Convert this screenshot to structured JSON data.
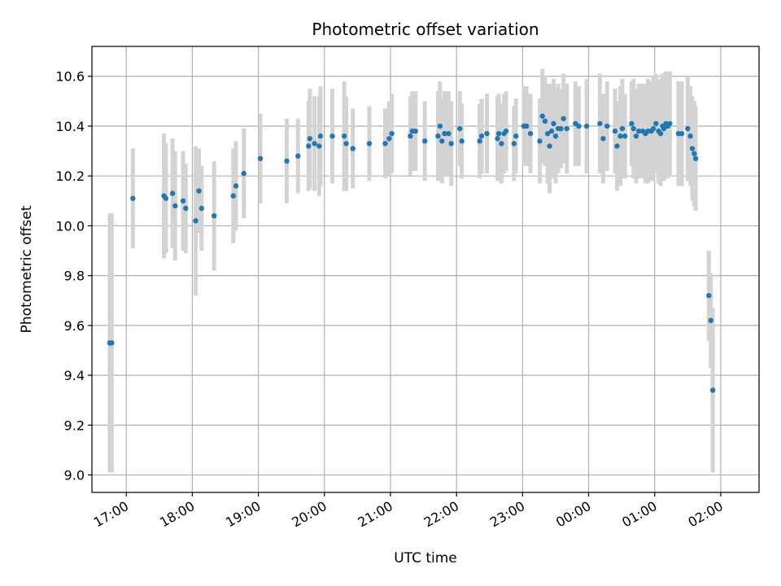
{
  "chart_data": {
    "type": "scatter",
    "title": "Photometric offset variation",
    "xlabel": "UTC time",
    "ylabel": "Photometric offset",
    "x_unit": "hours after 00:00 UTC of first night (values > 24 are after midnight)",
    "xlim": [
      16.48,
      26.58
    ],
    "ylim": [
      8.93,
      10.72
    ],
    "xticks": [
      {
        "value": 17,
        "label": "17:00"
      },
      {
        "value": 18,
        "label": "18:00"
      },
      {
        "value": 19,
        "label": "19:00"
      },
      {
        "value": 20,
        "label": "20:00"
      },
      {
        "value": 21,
        "label": "21:00"
      },
      {
        "value": 22,
        "label": "22:00"
      },
      {
        "value": 23,
        "label": "23:00"
      },
      {
        "value": 24,
        "label": "00:00"
      },
      {
        "value": 25,
        "label": "01:00"
      },
      {
        "value": 26,
        "label": "02:00"
      }
    ],
    "yticks": [
      {
        "value": 9.0,
        "label": "9.0"
      },
      {
        "value": 9.2,
        "label": "9.2"
      },
      {
        "value": 9.4,
        "label": "9.4"
      },
      {
        "value": 9.6,
        "label": "9.6"
      },
      {
        "value": 9.8,
        "label": "9.8"
      },
      {
        "value": 10.0,
        "label": "10.0"
      },
      {
        "value": 10.2,
        "label": "10.2"
      },
      {
        "value": 10.4,
        "label": "10.4"
      },
      {
        "value": 10.6,
        "label": "10.6"
      }
    ],
    "grid": true,
    "colors": {
      "point": "#1f77b4",
      "errorbar": "#d3d3d3",
      "grid": "#b0b0b0"
    },
    "series": [
      {
        "points": [
          [
            16.75,
            9.53,
            0.52
          ],
          [
            16.78,
            9.53,
            0.52
          ],
          [
            17.1,
            10.11,
            0.2
          ],
          [
            17.57,
            10.12,
            0.25
          ],
          [
            17.6,
            10.11,
            0.22
          ],
          [
            17.7,
            10.13,
            0.22
          ],
          [
            17.74,
            10.08,
            0.22
          ],
          [
            17.86,
            10.1,
            0.2
          ],
          [
            17.9,
            10.07,
            0.18
          ],
          [
            18.05,
            10.02,
            0.3
          ],
          [
            18.1,
            10.14,
            0.17
          ],
          [
            18.14,
            10.07,
            0.17
          ],
          [
            18.33,
            10.04,
            0.22
          ],
          [
            18.62,
            10.12,
            0.19
          ],
          [
            18.66,
            10.16,
            0.18
          ],
          [
            18.78,
            10.21,
            0.18
          ],
          [
            19.03,
            10.27,
            0.18
          ],
          [
            19.43,
            10.26,
            0.17
          ],
          [
            19.6,
            10.28,
            0.15
          ],
          [
            19.76,
            10.32,
            0.18
          ],
          [
            19.78,
            10.35,
            0.2
          ],
          [
            19.85,
            10.33,
            0.19
          ],
          [
            19.92,
            10.32,
            0.2
          ],
          [
            19.94,
            10.36,
            0.2
          ],
          [
            20.12,
            10.36,
            0.19
          ],
          [
            20.3,
            10.36,
            0.22
          ],
          [
            20.33,
            10.33,
            0.19
          ],
          [
            20.43,
            10.31,
            0.16
          ],
          [
            20.68,
            10.33,
            0.15
          ],
          [
            20.92,
            10.33,
            0.14
          ],
          [
            20.98,
            10.35,
            0.15
          ],
          [
            21.02,
            10.37,
            0.16
          ],
          [
            21.3,
            10.36,
            0.16
          ],
          [
            21.33,
            10.38,
            0.16
          ],
          [
            21.38,
            10.38,
            0.16
          ],
          [
            21.52,
            10.34,
            0.16
          ],
          [
            21.72,
            10.36,
            0.18
          ],
          [
            21.75,
            10.4,
            0.18
          ],
          [
            21.78,
            10.34,
            0.17
          ],
          [
            21.82,
            10.37,
            0.17
          ],
          [
            21.88,
            10.37,
            0.17
          ],
          [
            21.92,
            10.33,
            0.17
          ],
          [
            22.05,
            10.39,
            0.15
          ],
          [
            22.08,
            10.34,
            0.15
          ],
          [
            22.35,
            10.34,
            0.15
          ],
          [
            22.38,
            10.36,
            0.15
          ],
          [
            22.46,
            10.37,
            0.16
          ],
          [
            22.62,
            10.35,
            0.17
          ],
          [
            22.64,
            10.37,
            0.16
          ],
          [
            22.68,
            10.33,
            0.16
          ],
          [
            22.72,
            10.37,
            0.16
          ],
          [
            22.75,
            10.38,
            0.16
          ],
          [
            22.87,
            10.33,
            0.15
          ],
          [
            22.9,
            10.36,
            0.15
          ],
          [
            23.02,
            10.4,
            0.16
          ],
          [
            23.06,
            10.4,
            0.16
          ],
          [
            23.12,
            10.37,
            0.16
          ],
          [
            23.26,
            10.34,
            0.17
          ],
          [
            23.3,
            10.44,
            0.19
          ],
          [
            23.34,
            10.42,
            0.18
          ],
          [
            23.38,
            10.37,
            0.2
          ],
          [
            23.41,
            10.32,
            0.19
          ],
          [
            23.44,
            10.38,
            0.19
          ],
          [
            23.47,
            10.41,
            0.18
          ],
          [
            23.5,
            10.36,
            0.19
          ],
          [
            23.54,
            10.39,
            0.18
          ],
          [
            23.58,
            10.39,
            0.16
          ],
          [
            23.62,
            10.43,
            0.18
          ],
          [
            23.67,
            10.39,
            0.18
          ],
          [
            23.8,
            10.41,
            0.17
          ],
          [
            23.85,
            10.4,
            0.16
          ],
          [
            23.97,
            10.4,
            0.19
          ],
          [
            24.17,
            10.41,
            0.2
          ],
          [
            24.22,
            10.35,
            0.18
          ],
          [
            24.28,
            10.4,
            0.18
          ],
          [
            24.4,
            10.38,
            0.17
          ],
          [
            24.43,
            10.32,
            0.18
          ],
          [
            24.48,
            10.36,
            0.2
          ],
          [
            24.51,
            10.39,
            0.2
          ],
          [
            24.55,
            10.36,
            0.17
          ],
          [
            24.65,
            10.41,
            0.17
          ],
          [
            24.68,
            10.39,
            0.2
          ],
          [
            24.72,
            10.36,
            0.19
          ],
          [
            24.76,
            10.38,
            0.19
          ],
          [
            24.82,
            10.38,
            0.19
          ],
          [
            24.86,
            10.37,
            0.2
          ],
          [
            24.9,
            10.38,
            0.21
          ],
          [
            24.95,
            10.38,
            0.2
          ],
          [
            24.98,
            10.39,
            0.21
          ],
          [
            25.02,
            10.41,
            0.2
          ],
          [
            25.06,
            10.38,
            0.21
          ],
          [
            25.09,
            10.37,
            0.21
          ],
          [
            25.12,
            10.4,
            0.21
          ],
          [
            25.14,
            10.39,
            0.21
          ],
          [
            25.17,
            10.41,
            0.21
          ],
          [
            25.2,
            10.4,
            0.21
          ],
          [
            25.23,
            10.41,
            0.21
          ],
          [
            25.36,
            10.37,
            0.21
          ],
          [
            25.41,
            10.37,
            0.21
          ],
          [
            25.5,
            10.39,
            0.21
          ],
          [
            25.54,
            10.36,
            0.2
          ],
          [
            25.57,
            10.31,
            0.21
          ],
          [
            25.6,
            10.29,
            0.21
          ],
          [
            25.62,
            10.27,
            0.21
          ],
          [
            25.82,
            9.72,
            0.18
          ],
          [
            25.85,
            9.62,
            0.19
          ],
          [
            25.88,
            9.34,
            0.33
          ]
        ]
      }
    ]
  }
}
